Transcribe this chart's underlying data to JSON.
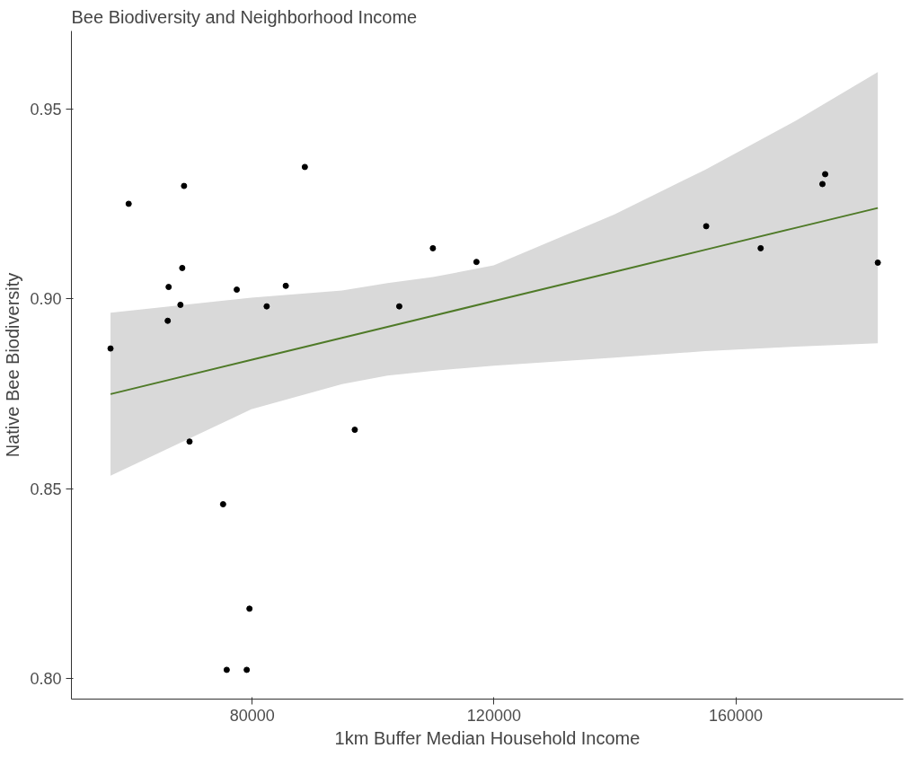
{
  "chart_data": {
    "type": "scatter",
    "title": "Bee Biodiversity and Neighborhood Income",
    "xlabel": "1km Buffer Median Household Income",
    "ylabel": "Native Bee Biodiversity",
    "xlim": [
      50100,
      187700
    ],
    "ylim": [
      0.7946,
      0.9705
    ],
    "xticks": [
      80000,
      120000,
      160000
    ],
    "yticks": [
      {
        "value": 0.8,
        "label": "0.80"
      },
      {
        "value": 0.85,
        "label": "0.85"
      },
      {
        "value": 0.9,
        "label": "0.90"
      },
      {
        "value": 0.95,
        "label": "0.95"
      }
    ],
    "series": [
      {
        "marker": "circle",
        "color": "#000000",
        "x": [
          56570,
          59570,
          68730,
          68430,
          66180,
          68130,
          66030,
          69640,
          77450,
          75190,
          75790,
          79100,
          79550,
          82400,
          85560,
          88710,
          96970,
          104330,
          109890,
          117100,
          155100,
          164110,
          174330,
          174780,
          183490
        ],
        "values": [
          0.8869,
          0.925,
          0.9297,
          0.9081,
          0.9031,
          0.8984,
          0.8942,
          0.8624,
          0.9024,
          0.8459,
          0.8023,
          0.8023,
          0.8184,
          0.898,
          0.9034,
          0.9347,
          0.8655,
          0.898,
          0.9133,
          0.9097,
          0.9191,
          0.9133,
          0.9302,
          0.9328,
          0.9095
        ]
      },
      {
        "type": "line",
        "color": "#4f7a28",
        "x": [
          56570,
          79850,
          94870,
          102380,
          109890,
          119950,
          139930,
          154950,
          169970,
          183490
        ],
        "values": [
          0.8749,
          0.8839,
          0.8897,
          0.8926,
          0.8955,
          0.8994,
          0.9071,
          0.9129,
          0.9187,
          0.9239
        ],
        "lower": [
          0.8534,
          0.8709,
          0.8775,
          0.8798,
          0.881,
          0.8824,
          0.8845,
          0.8862,
          0.8874,
          0.8883
        ],
        "upper": [
          0.8963,
          0.9003,
          0.9022,
          0.9041,
          0.9057,
          0.9088,
          0.9222,
          0.934,
          0.9469,
          0.9597
        ]
      }
    ]
  }
}
